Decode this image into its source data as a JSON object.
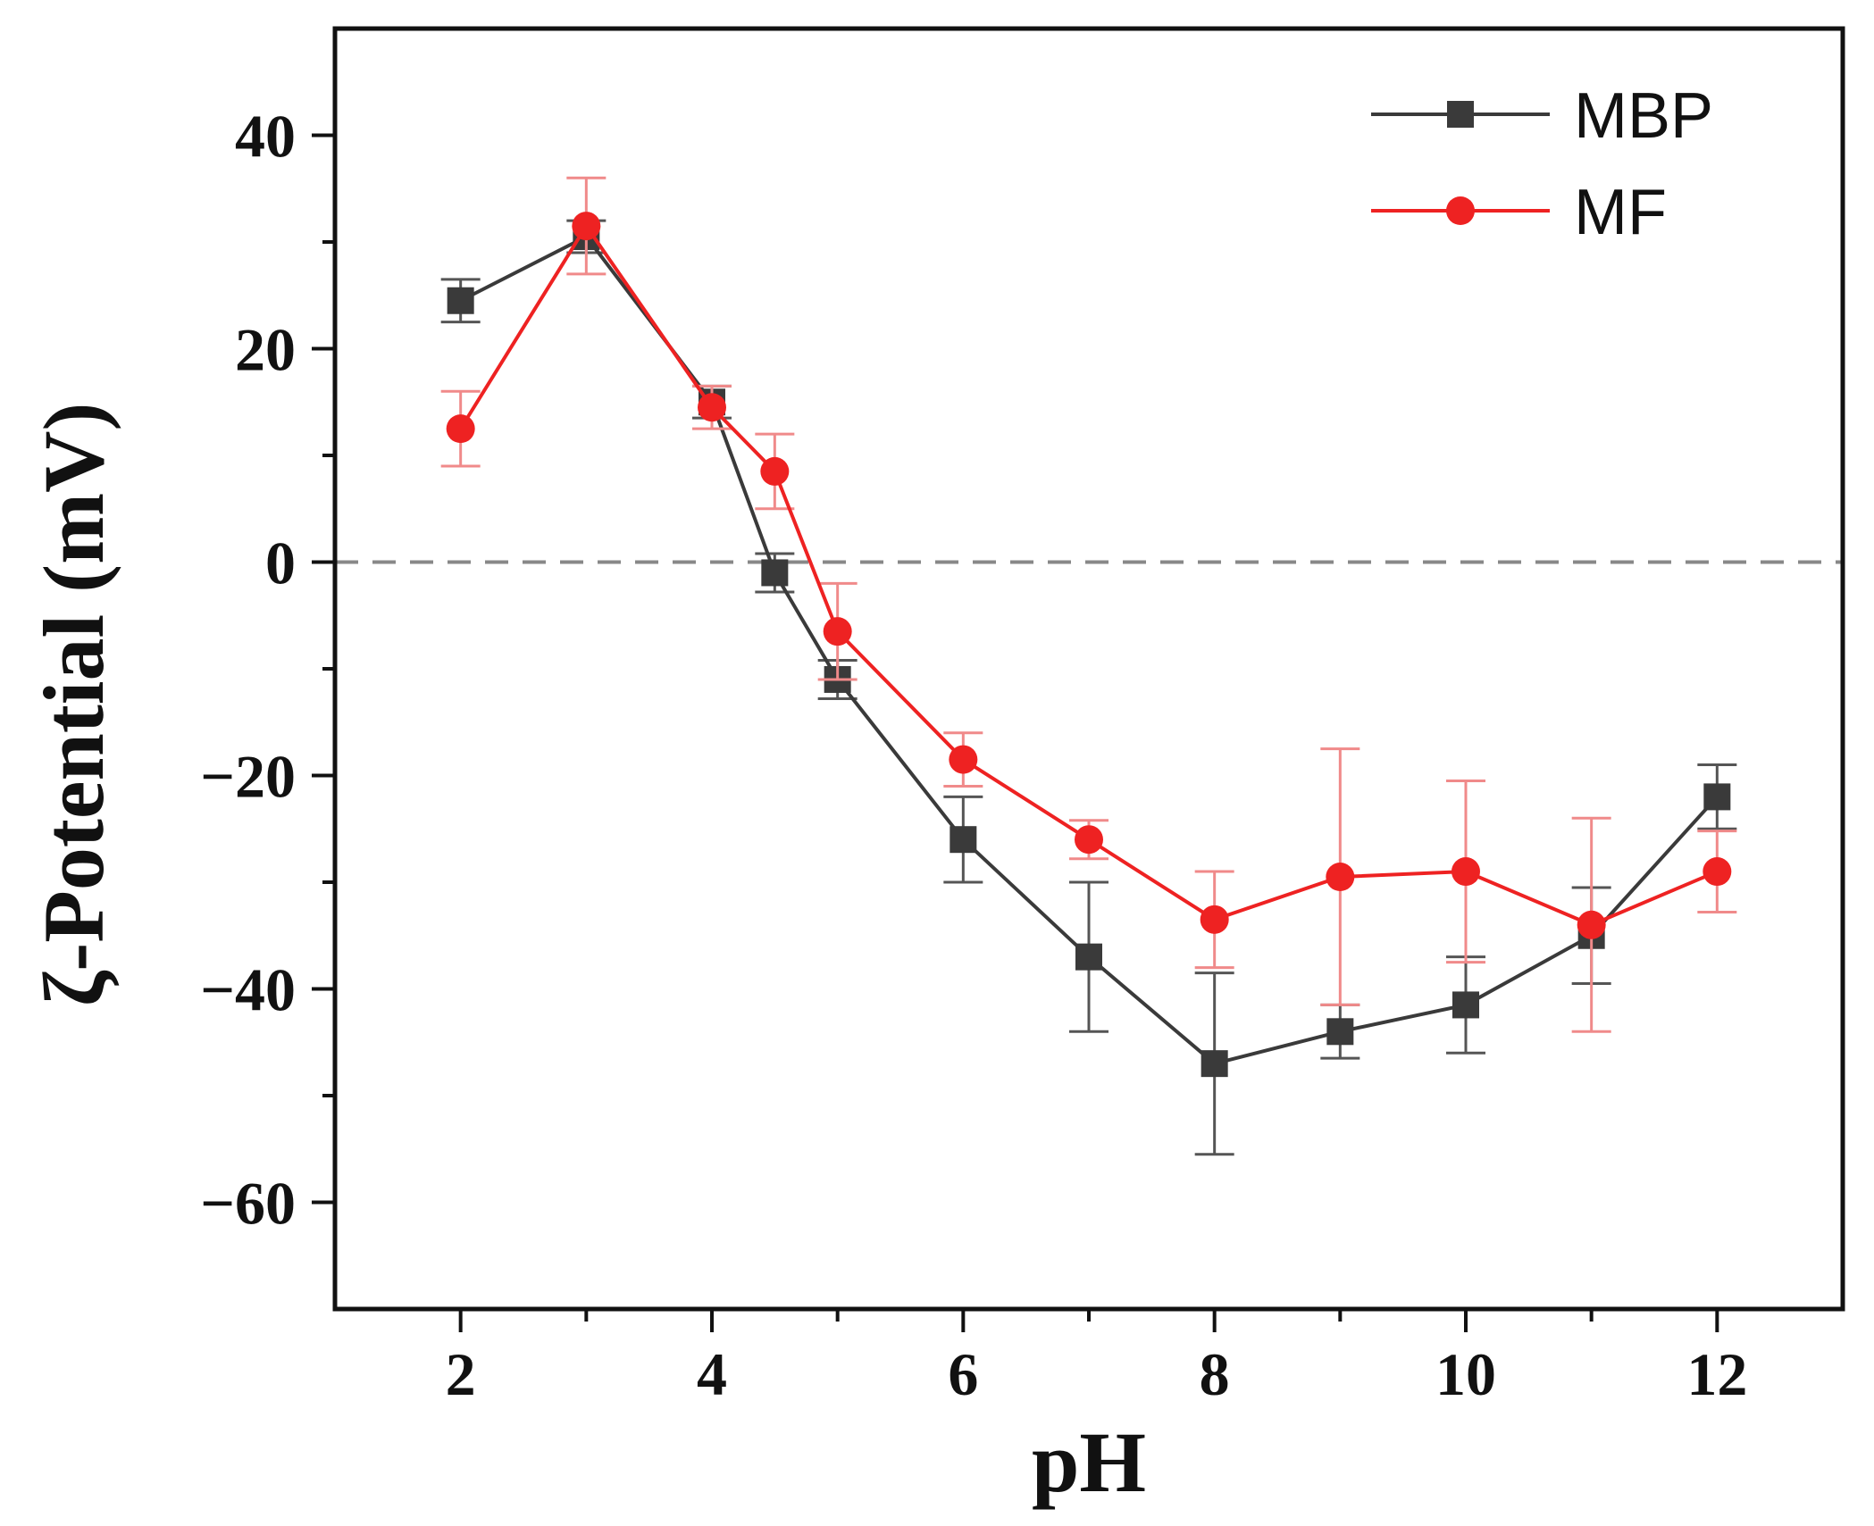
{
  "chart_data": {
    "type": "line",
    "title": "",
    "xlabel": "pH",
    "ylabel": "ζ-Potential (mV)",
    "xlim": [
      1,
      13
    ],
    "ylim": [
      -70,
      50
    ],
    "x_ticks": [
      2,
      4,
      6,
      8,
      10,
      12
    ],
    "x_minor_ticks": [
      3,
      5,
      7,
      9,
      11
    ],
    "y_ticks": [
      40,
      20,
      0,
      -20,
      -40,
      -60
    ],
    "y_tick_labels": [
      "40",
      "20",
      "0",
      "−20",
      "−40",
      "−60"
    ],
    "y_minor_ticks": [
      30,
      10,
      -10,
      -30,
      -50
    ],
    "reference_line": {
      "y": 0,
      "style": "dashed",
      "color": "#888888"
    },
    "legend_position": "top-right",
    "series": [
      {
        "name": "MBP",
        "color": "#3a3a3a",
        "marker": "square",
        "x": [
          2,
          3,
          4,
          4.5,
          5,
          6,
          7,
          8,
          9,
          10,
          11,
          12
        ],
        "y": [
          24.5,
          30.5,
          15.0,
          -1.0,
          -11.0,
          -26.0,
          -37.0,
          -47.0,
          -44.0,
          -41.5,
          -35.0,
          -22.0
        ],
        "error": [
          2.0,
          1.5,
          1.5,
          1.8,
          1.8,
          4.0,
          7.0,
          8.5,
          2.5,
          4.5,
          4.5,
          3.0
        ]
      },
      {
        "name": "MF",
        "color": "#ee2222",
        "marker": "circle",
        "x": [
          2,
          3,
          4,
          4.5,
          5,
          6,
          7,
          8,
          9,
          10,
          11,
          12
        ],
        "y": [
          12.5,
          31.5,
          14.5,
          8.5,
          -6.5,
          -18.5,
          -26.0,
          -33.5,
          -29.5,
          -29.0,
          -34.0,
          -29.0
        ],
        "error": [
          3.5,
          4.5,
          2.0,
          3.5,
          4.5,
          2.5,
          1.8,
          4.5,
          12.0,
          8.5,
          10.0,
          3.8
        ]
      }
    ]
  }
}
